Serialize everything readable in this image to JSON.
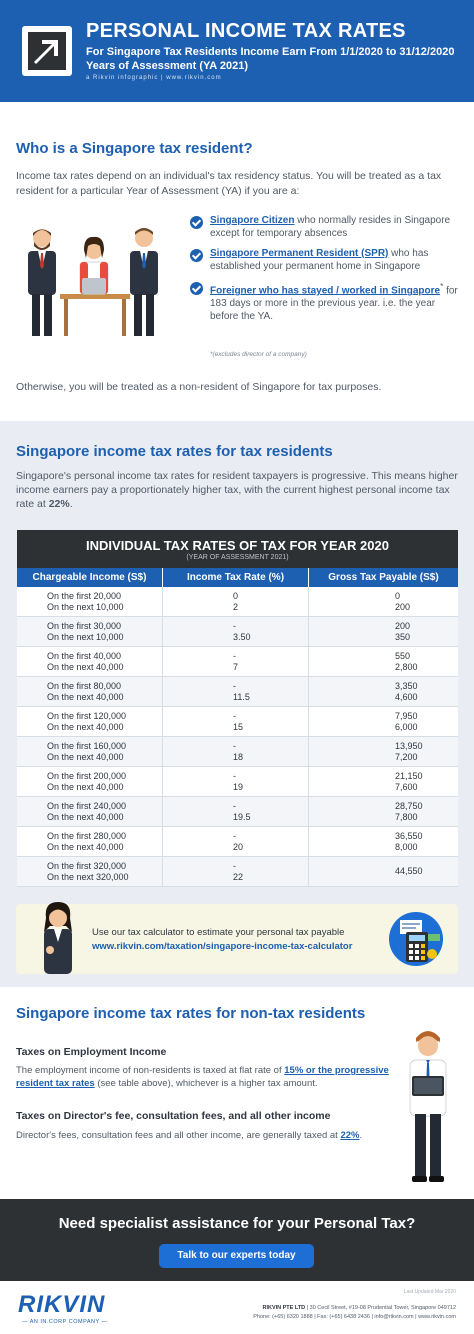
{
  "header": {
    "title": "PERSONAL INCOME TAX RATES",
    "subtitle_line1": "For Singapore Tax Residents Income Earn From 1/1/2020 to 31/12/2020",
    "subtitle_line2": "Years of Assessment (YA 2021)",
    "credit": "a Rikvin infographic  |  www.rikvin.com",
    "accent_color": "#1d5fb0"
  },
  "resident": {
    "title": "Who is a Singapore tax resident?",
    "intro": "Income tax rates depend on an individual's tax residency status. You will be treated as a tax resident for a particular Year of Assessment (YA) if you are a:",
    "criteria": [
      {
        "highlight": "Singapore Citizen",
        "rest": " who normally resides in Singapore except for temporary absences"
      },
      {
        "highlight": "Singapore Permanent Resident (SPR)",
        "rest": " who has established your permanent home in Singapore"
      },
      {
        "highlight": "Foreigner who has stayed / worked in Singapore",
        "mark": "*",
        "rest": " for 183 days or more in the previous year. i.e. the year before the YA."
      }
    ],
    "footnote": "*(excludes director of a company)",
    "otherwise": "Otherwise, you will be treated as a non-resident of Singapore for tax purposes."
  },
  "rates": {
    "title": "Singapore income tax rates for tax residents",
    "intro_pre": "Singapore's personal income tax rates for resident taxpayers is progressive. This means higher income earners pay a proportionately higher tax, with the current highest personal income tax rate at ",
    "intro_rate": "22%",
    "intro_post": ".",
    "table": {
      "title": "INDIVIDUAL TAX RATES OF TAX FOR YEAR 2020",
      "subtitle": "(YEAR OF ASSESSMENT 2021)",
      "columns": [
        "Chargeable Income (S$)",
        "Income Tax Rate (%)",
        "Gross Tax Payable (S$)"
      ],
      "rows": [
        {
          "income": [
            "On the first 20,000",
            "On the next 10,000"
          ],
          "rate": [
            "0",
            "2"
          ],
          "tax": [
            "0",
            "200"
          ]
        },
        {
          "income": [
            "On the first 30,000",
            "On the next 10,000"
          ],
          "rate": [
            "-",
            "3.50"
          ],
          "tax": [
            "200",
            "350"
          ]
        },
        {
          "income": [
            "On the first 40,000",
            "On the next 40,000"
          ],
          "rate": [
            "-",
            "7"
          ],
          "tax": [
            "550",
            "2,800"
          ]
        },
        {
          "income": [
            "On the first 80,000",
            "On the next 40,000"
          ],
          "rate": [
            "-",
            "11.5"
          ],
          "tax": [
            "3,350",
            "4,600"
          ]
        },
        {
          "income": [
            "On the first 120,000",
            "On the next 40,000"
          ],
          "rate": [
            "-",
            "15"
          ],
          "tax": [
            "7,950",
            "6,000"
          ]
        },
        {
          "income": [
            "On the first 160,000",
            "On the next 40,000"
          ],
          "rate": [
            "-",
            "18"
          ],
          "tax": [
            "13,950",
            "7,200"
          ]
        },
        {
          "income": [
            "On the first 200,000",
            "On the next 40,000"
          ],
          "rate": [
            "-",
            "19"
          ],
          "tax": [
            "21,150",
            "7,600"
          ]
        },
        {
          "income": [
            "On the first 240,000",
            "On the next 40,000"
          ],
          "rate": [
            "-",
            "19.5"
          ],
          "tax": [
            "28,750",
            "7,800"
          ]
        },
        {
          "income": [
            "On the first 280,000",
            "On the next 40,000"
          ],
          "rate": [
            "-",
            "20"
          ],
          "tax": [
            "36,550",
            "8,000"
          ]
        },
        {
          "income": [
            "On the first 320,000",
            "On the next 320,000"
          ],
          "rate": [
            "-",
            "22"
          ],
          "tax": [
            "44,550"
          ]
        }
      ]
    },
    "calculator": {
      "text": "Use our tax calculator to estimate your personal tax payable",
      "link": "www.rikvin.com/taxation/singapore-income-tax-calculator"
    }
  },
  "nonresident": {
    "title": "Singapore income tax rates for non-tax residents",
    "employment_heading": "Taxes on Employment Income",
    "employment_pre": "The employment income of non-residents is taxed at flat rate of ",
    "employment_link": "15% or the progressive resident tax rates",
    "employment_post": " (see table above), whichever is a higher tax amount.",
    "director_heading": "Taxes on Director's fee, consultation fees, and all other income",
    "director_pre": "Director's fees, consultation fees and all other income, are generally taxed at ",
    "director_link": "22%",
    "director_post": "."
  },
  "cta": {
    "title": "Need specialist assistance for your Personal Tax?",
    "button": "Talk to our experts today"
  },
  "footer": {
    "logo": "RIKVIN",
    "tagline": "— AN IN.CORP COMPANY —",
    "updated": "Last Updated Mar 2020",
    "company": "RIKVIN PTE LTD",
    "address": " | 30 Cecil Street, #19-08 Prudential Tower, Singapore 049712",
    "contact": "Phone: (+65) 6320 1888 | Fax: (+65) 6438 2436 | info@rikvin.com | www.rikvin.com"
  }
}
